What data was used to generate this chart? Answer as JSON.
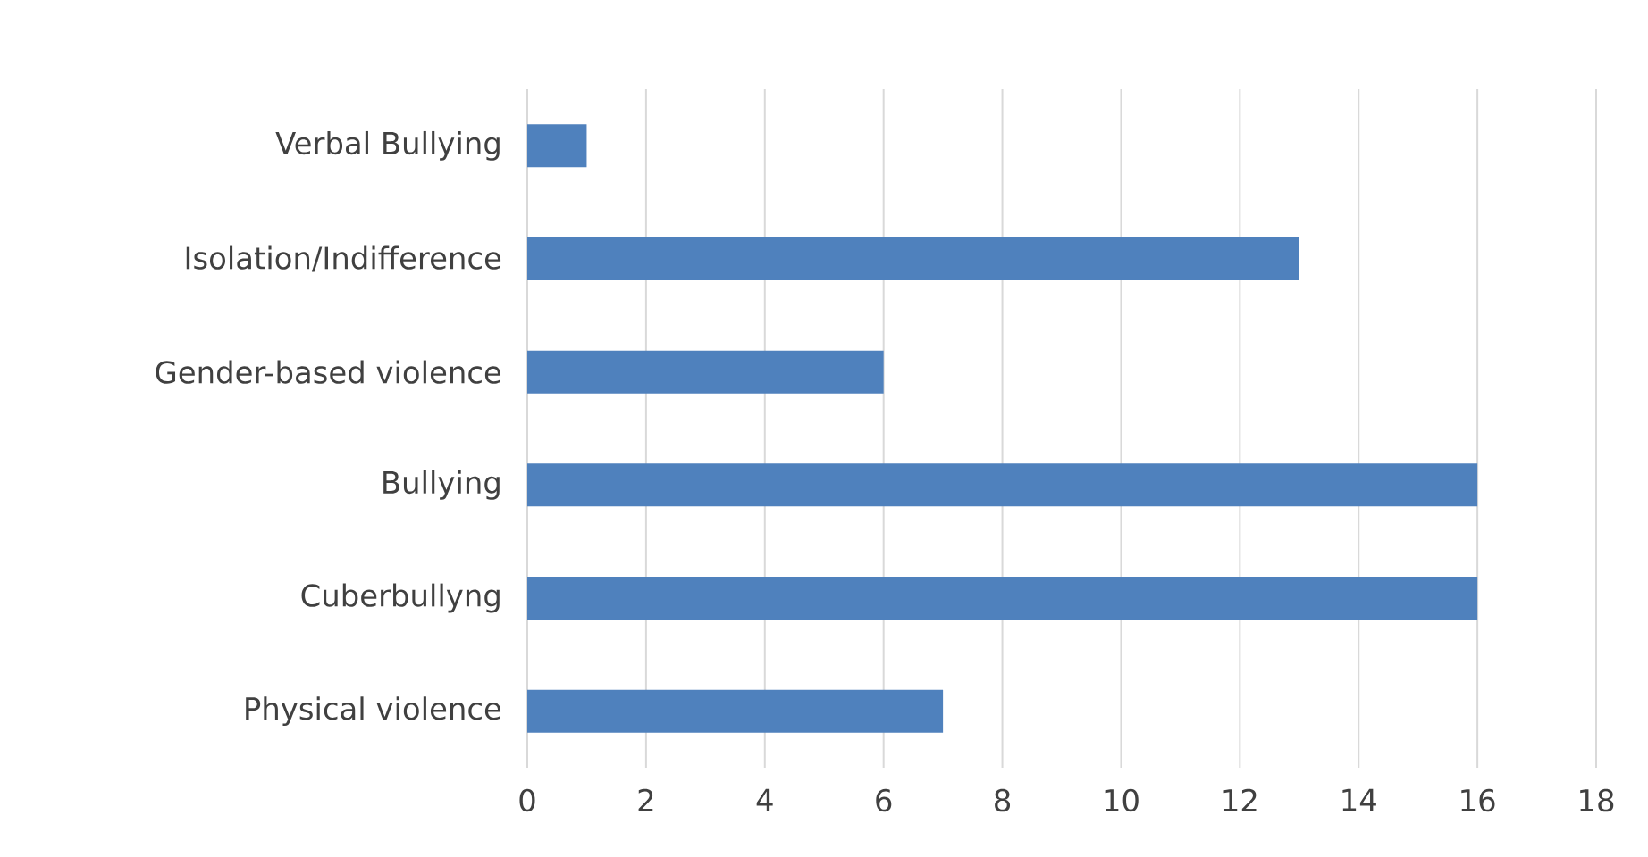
{
  "chart_data": {
    "type": "bar",
    "orientation": "horizontal",
    "categories": [
      "Verbal Bullying",
      "Isolation/Indifference",
      "Gender-based violence",
      "Bullying",
      "Cuberbullyng",
      "Physical violence"
    ],
    "values": [
      1,
      13,
      6,
      16,
      16,
      7
    ],
    "color": "#4f81bd",
    "xlim": [
      0,
      18
    ],
    "xticks": [
      0,
      2,
      4,
      6,
      8,
      10,
      12,
      14,
      16,
      18
    ],
    "grid": "x"
  }
}
